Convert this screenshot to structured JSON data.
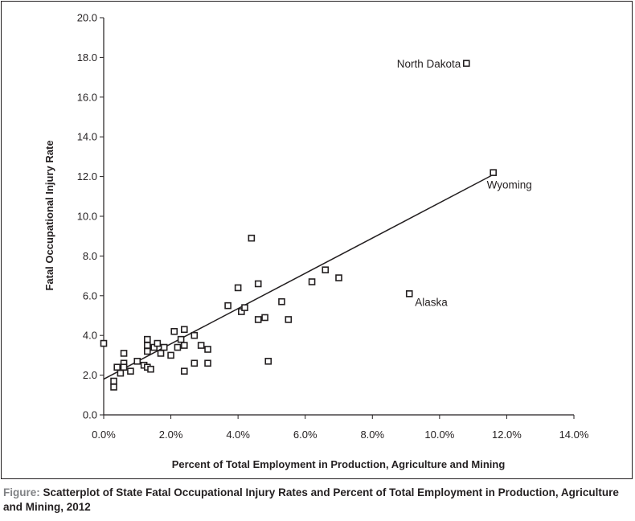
{
  "chart_data": {
    "type": "scatter",
    "xlabel": "Percent of Total Employment in Production, Agriculture and Mining",
    "ylabel": "Fatal Occupational Injury Rate",
    "xlim": [
      0,
      14
    ],
    "ylim": [
      0,
      20
    ],
    "x_ticks": [
      "0.0%",
      "2.0%",
      "4.0%",
      "6.0%",
      "8.0%",
      "10.0%",
      "12.0%",
      "14.0%"
    ],
    "y_ticks": [
      "0.0",
      "2.0",
      "4.0",
      "6.0",
      "8.0",
      "10.0",
      "12.0",
      "14.0",
      "16.0",
      "18.0",
      "20.0"
    ],
    "grid": false,
    "marker": "open-square",
    "points": [
      {
        "x": 0.0,
        "y": 3.6
      },
      {
        "x": 0.3,
        "y": 1.7
      },
      {
        "x": 0.3,
        "y": 1.4
      },
      {
        "x": 0.4,
        "y": 2.4
      },
      {
        "x": 0.5,
        "y": 2.1
      },
      {
        "x": 0.6,
        "y": 3.1
      },
      {
        "x": 0.6,
        "y": 2.6
      },
      {
        "x": 0.6,
        "y": 2.4
      },
      {
        "x": 0.8,
        "y": 2.2
      },
      {
        "x": 1.0,
        "y": 2.7
      },
      {
        "x": 1.2,
        "y": 2.5
      },
      {
        "x": 1.3,
        "y": 3.8
      },
      {
        "x": 1.3,
        "y": 3.5
      },
      {
        "x": 1.3,
        "y": 3.2
      },
      {
        "x": 1.3,
        "y": 2.4
      },
      {
        "x": 1.4,
        "y": 2.3
      },
      {
        "x": 1.5,
        "y": 3.4
      },
      {
        "x": 1.6,
        "y": 3.6
      },
      {
        "x": 1.7,
        "y": 3.1
      },
      {
        "x": 1.8,
        "y": 3.4
      },
      {
        "x": 2.0,
        "y": 3.0
      },
      {
        "x": 2.1,
        "y": 4.2
      },
      {
        "x": 2.2,
        "y": 3.4
      },
      {
        "x": 2.3,
        "y": 3.8
      },
      {
        "x": 2.4,
        "y": 4.3
      },
      {
        "x": 2.4,
        "y": 3.5
      },
      {
        "x": 2.4,
        "y": 2.2
      },
      {
        "x": 2.7,
        "y": 4.0
      },
      {
        "x": 2.7,
        "y": 2.6
      },
      {
        "x": 2.9,
        "y": 3.5
      },
      {
        "x": 3.1,
        "y": 3.3
      },
      {
        "x": 3.1,
        "y": 2.6
      },
      {
        "x": 3.7,
        "y": 5.5
      },
      {
        "x": 4.0,
        "y": 6.4
      },
      {
        "x": 4.1,
        "y": 5.2
      },
      {
        "x": 4.2,
        "y": 5.4
      },
      {
        "x": 4.4,
        "y": 8.9
      },
      {
        "x": 4.6,
        "y": 6.6
      },
      {
        "x": 4.6,
        "y": 4.8
      },
      {
        "x": 4.8,
        "y": 4.9
      },
      {
        "x": 4.9,
        "y": 2.7
      },
      {
        "x": 5.3,
        "y": 5.7
      },
      {
        "x": 5.5,
        "y": 4.8
      },
      {
        "x": 6.2,
        "y": 6.7
      },
      {
        "x": 6.6,
        "y": 7.3
      },
      {
        "x": 7.0,
        "y": 6.9
      },
      {
        "x": 9.1,
        "y": 6.1
      },
      {
        "x": 10.8,
        "y": 17.7
      },
      {
        "x": 11.6,
        "y": 12.2
      }
    ],
    "trendline": {
      "x": [
        0.0,
        11.6
      ],
      "y": [
        1.8,
        12.1
      ]
    },
    "annotations": [
      {
        "text": "North Dakota",
        "x": 10.8,
        "y": 17.7,
        "position": "left"
      },
      {
        "text": "Wyoming",
        "x": 11.6,
        "y": 12.2,
        "position": "below"
      },
      {
        "text": "Alaska",
        "x": 9.1,
        "y": 6.1,
        "position": "below-right"
      }
    ]
  },
  "caption": {
    "label": "Figure:",
    "text": "Scatterplot of State Fatal Occupational Injury Rates and Percent of Total Employment in Production, Agriculture and Mining, 2012"
  }
}
